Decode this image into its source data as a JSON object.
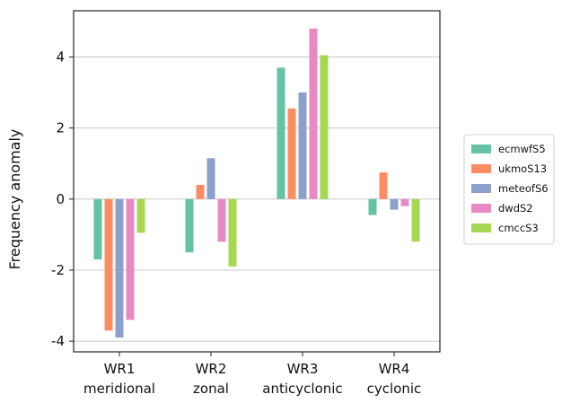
{
  "chart_data": {
    "type": "bar",
    "title": "",
    "xlabel": "",
    "ylabel": "Frequency anomaly",
    "ylim": [
      -4.3,
      5.3
    ],
    "yticks": [
      -4,
      -2,
      0,
      2,
      4
    ],
    "ytick_labels": [
      "-4",
      "-2",
      "0",
      "2",
      "4"
    ],
    "grid": "horizontal",
    "legend_position": "right",
    "categories": [
      {
        "line1": "WR1",
        "line2": "meridional"
      },
      {
        "line1": "WR2",
        "line2": "zonal"
      },
      {
        "line1": "WR3",
        "line2": "anticyclonic"
      },
      {
        "line1": "WR4",
        "line2": "cyclonic"
      }
    ],
    "series": [
      {
        "name": "ecmwfS5",
        "color": "#66c2a5",
        "values": [
          -1.7,
          -1.5,
          3.7,
          -0.45
        ]
      },
      {
        "name": "ukmoS13",
        "color": "#fc8d62",
        "values": [
          -3.7,
          0.4,
          2.55,
          0.75
        ]
      },
      {
        "name": "meteofS6",
        "color": "#8da0cb",
        "values": [
          -3.9,
          1.15,
          3.0,
          -0.3
        ]
      },
      {
        "name": "dwdS2",
        "color": "#e78ac3",
        "values": [
          -3.4,
          -1.2,
          4.8,
          -0.2
        ]
      },
      {
        "name": "cmccS3",
        "color": "#a6d854",
        "values": [
          -0.95,
          -1.9,
          4.05,
          -1.2
        ]
      }
    ]
  }
}
